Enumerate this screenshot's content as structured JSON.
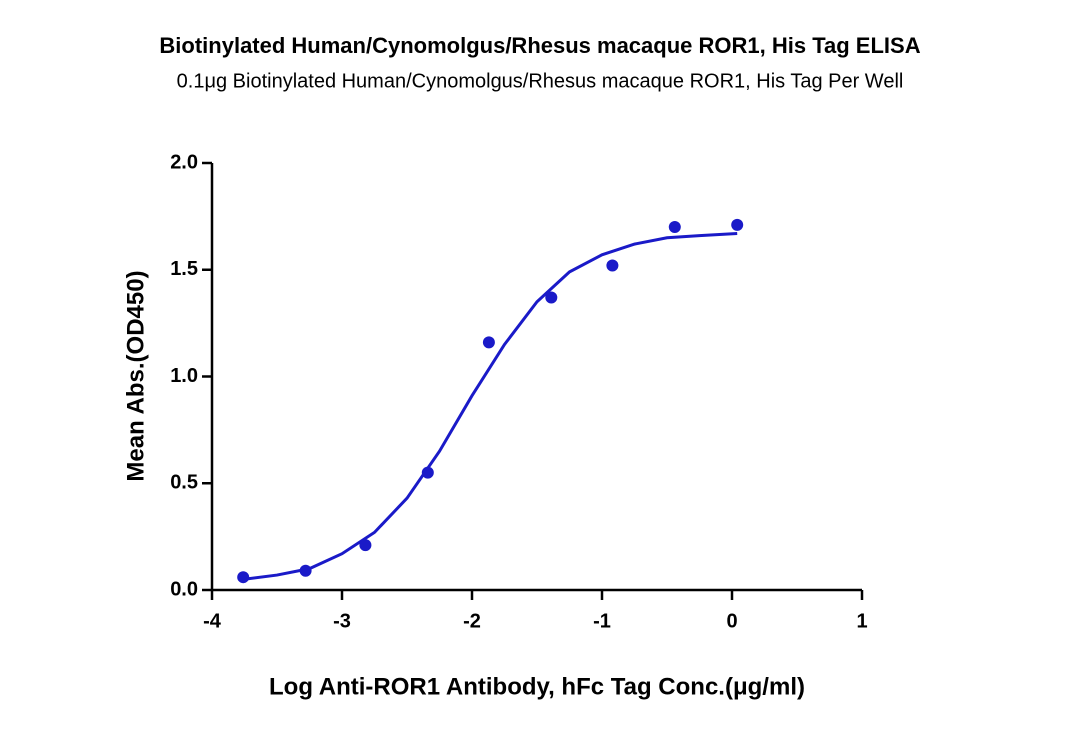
{
  "chart_data": {
    "type": "scatter",
    "title": "Biotinylated Human/Cynomolgus/Rhesus macaque ROR1, His Tag ELISA",
    "subtitle": "0.1μg Biotinylated Human/Cynomolgus/Rhesus macaque ROR1, His Tag Per Well",
    "x_label": "Log Anti-ROR1 Antibody, hFc Tag Conc.(μg/ml)",
    "y_label": "Mean Abs.(OD450)",
    "series": [
      {
        "color": "#1a1ac8",
        "x": [
          -3.76,
          -3.28,
          -2.82,
          -2.34,
          -1.87,
          -1.39,
          -0.92,
          -0.44,
          0.04
        ],
        "values": [
          0.06,
          0.09,
          0.21,
          0.55,
          1.16,
          1.37,
          1.52,
          1.7,
          1.71
        ]
      },
      {
        "color": "#1a1ac8",
        "x": [
          -3.76,
          -3.5,
          -3.25,
          -3,
          -2.75,
          -2.5,
          -2.25,
          -2,
          -1.75,
          -1.5,
          -1.25,
          -1,
          -0.75,
          -0.5,
          -0.25,
          0.04
        ],
        "values": [
          0.05,
          0.07,
          0.1,
          0.17,
          0.27,
          0.43,
          0.65,
          0.91,
          1.15,
          1.35,
          1.49,
          1.57,
          1.62,
          1.65,
          1.66,
          1.67
        ]
      }
    ],
    "xlim": [
      -4,
      1
    ],
    "xticks": [
      -4,
      -3,
      -2,
      -1,
      0,
      1
    ],
    "ylim": [
      0,
      2
    ],
    "yticks": [
      {
        "value": 0,
        "label": "0.0"
      },
      0.5,
      {
        "value": 1,
        "label": "1.0"
      },
      1.5,
      {
        "value": 2,
        "label": "2.0"
      }
    ]
  }
}
